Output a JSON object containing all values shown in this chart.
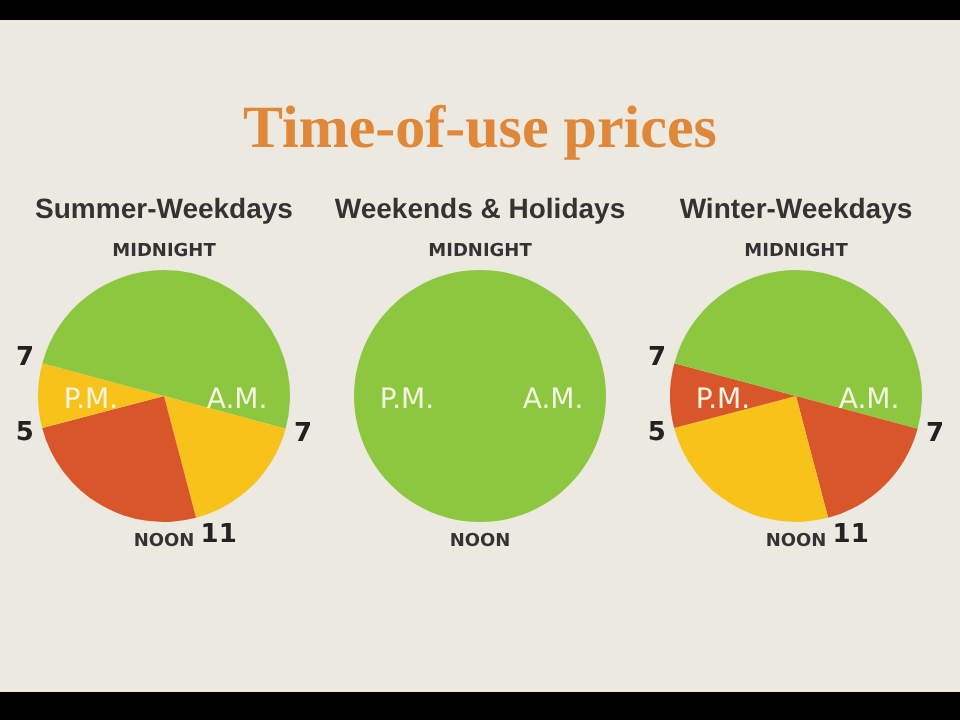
{
  "chart_data": [
    {
      "type": "other",
      "title": "Time-of-use prices"
    },
    {
      "type": "pie",
      "title": "Summer-Weekdays",
      "categories": [
        null,
        null,
        null,
        null,
        null
      ],
      "values": [
        29.2,
        16.7,
        25,
        8.3,
        20.8
      ],
      "colors": [
        "#8dc63f",
        "#f7c21a",
        "#d9562a",
        "#f7c21a",
        "#8dc63f"
      ],
      "annotations": [
        "MIDNIGHT",
        "NOON",
        "A.M.",
        "P.M.",
        "7",
        "11",
        "5",
        "7"
      ]
    },
    {
      "type": "pie",
      "title": "Weekends & Holidays",
      "categories": [
        null
      ],
      "values": [
        100
      ],
      "colors": [
        "#8dc63f"
      ],
      "annotations": [
        "MIDNIGHT",
        "NOON",
        "A.M.",
        "P.M."
      ]
    },
    {
      "type": "pie",
      "title": "Winter-Weekdays",
      "categories": [
        null,
        null,
        null,
        null,
        null
      ],
      "values": [
        29.2,
        16.7,
        25,
        8.3,
        20.8
      ],
      "colors": [
        "#8dc63f",
        "#d9562a",
        "#f7c21a",
        "#d9562a",
        "#8dc63f"
      ],
      "annotations": [
        "MIDNIGHT",
        "NOON",
        "A.M.",
        "P.M.",
        "7",
        "11",
        "5",
        "7"
      ]
    }
  ]
}
